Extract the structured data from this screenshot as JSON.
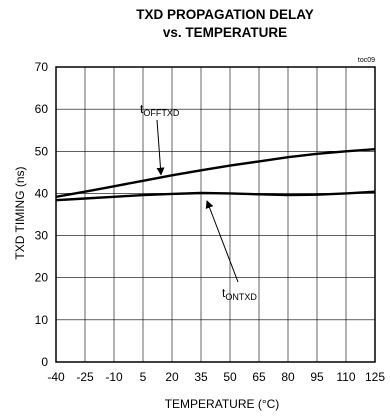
{
  "chart_data": {
    "type": "line",
    "title": "TXD PROPAGATION DELAY",
    "subtitle": "vs. TEMPERATURE",
    "code": "toc09",
    "xlabel": "TEMPERATURE (°C)",
    "ylabel": "TXD TIMING  (ns)",
    "xlim": [
      -40,
      125
    ],
    "ylim": [
      0,
      70
    ],
    "xticks": [
      -40,
      -25,
      -10,
      5,
      20,
      35,
      50,
      65,
      80,
      95,
      110,
      125
    ],
    "yticks": [
      0,
      10,
      20,
      30,
      40,
      50,
      60,
      70
    ],
    "grid": true,
    "series": [
      {
        "name_main": "t",
        "name_sub": "OFFTXD",
        "x": [
          -40,
          -25,
          -10,
          5,
          20,
          35,
          50,
          65,
          80,
          95,
          110,
          125
        ],
        "y": [
          39.2,
          40.4,
          41.7,
          43.0,
          44.3,
          45.5,
          46.6,
          47.6,
          48.6,
          49.4,
          50.0,
          50.5
        ]
      },
      {
        "name_main": "t",
        "name_sub": "ONTXD",
        "x": [
          -40,
          -25,
          -10,
          5,
          20,
          35,
          50,
          65,
          80,
          95,
          110,
          125
        ],
        "y": [
          38.4,
          38.8,
          39.2,
          39.6,
          39.9,
          40.1,
          40.0,
          39.8,
          39.6,
          39.7,
          40.0,
          40.4
        ]
      }
    ]
  }
}
